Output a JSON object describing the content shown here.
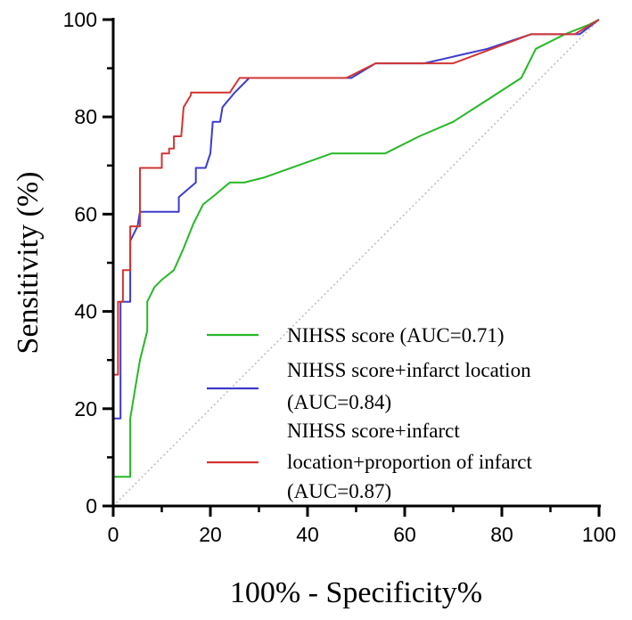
{
  "chart_data": {
    "type": "line",
    "title": "",
    "xlabel": "100% - Specificity%",
    "ylabel": "Sensitivity (%)",
    "xlim": [
      0,
      100
    ],
    "ylim": [
      0,
      100
    ],
    "xticks": [
      "0",
      "20",
      "40",
      "60",
      "80",
      "100"
    ],
    "yticks": [
      "0",
      "20",
      "40",
      "60",
      "80",
      "100"
    ],
    "grid": false,
    "legend_position": "bottom-right",
    "reference_line": {
      "x": [
        0,
        100
      ],
      "y": [
        0,
        100
      ],
      "style": "dotted",
      "color": "#bbbbbb"
    },
    "series": [
      {
        "name": "NIHSS score (AUC=0.71)",
        "color": "#27b827",
        "x": [
          0,
          0,
          3.5,
          3.5,
          4.5,
          5.5,
          7,
          7,
          8.5,
          10,
          12.5,
          14.5,
          16.5,
          18.5,
          21,
          24,
          27,
          31,
          38,
          45,
          56,
          63,
          70,
          77,
          84,
          87,
          93,
          98,
          100
        ],
        "y": [
          0,
          6,
          6,
          18,
          24,
          30,
          36,
          42,
          45,
          46.5,
          48.5,
          53,
          58,
          62,
          64,
          66.5,
          66.5,
          67.5,
          70,
          72.5,
          72.5,
          76,
          79,
          83.5,
          88,
          94,
          97,
          99,
          100
        ]
      },
      {
        "name": "NIHSS score+infarct location (AUC=0.84)",
        "color": "#3c3ccf",
        "x": [
          0,
          0,
          1.5,
          1.5,
          3.5,
          3.5,
          5,
          5.5,
          13.5,
          13.5,
          17,
          17,
          19,
          20,
          20.5,
          22,
          22.5,
          25,
          28,
          35,
          45,
          49,
          54,
          64,
          77,
          86,
          96,
          100
        ],
        "y": [
          0,
          18,
          18,
          42,
          42,
          54.5,
          57.5,
          60.5,
          60.5,
          63.5,
          66.5,
          69.5,
          69.5,
          72.5,
          79,
          79,
          82,
          85,
          88,
          88,
          88,
          88,
          91,
          91,
          94,
          97,
          97,
          100
        ]
      },
      {
        "name": "NIHSS score+infarct location+proportion of infarct (AUC=0.87)",
        "color": "#d23535",
        "x": [
          0,
          0,
          1,
          1,
          2,
          2,
          3.5,
          3.5,
          5.5,
          5.5,
          10,
          10,
          11.5,
          11.5,
          12.5,
          12.5,
          14,
          14.5,
          16,
          16,
          22,
          24,
          26,
          28,
          35,
          48,
          54,
          70,
          86,
          95,
          100
        ],
        "y": [
          0,
          27,
          27,
          42,
          42,
          48.5,
          48.5,
          57.5,
          57.5,
          69.5,
          69.5,
          72.5,
          72.5,
          73.5,
          73.5,
          76,
          76,
          82,
          84.5,
          85,
          85,
          85,
          88,
          88,
          88,
          88,
          91,
          91,
          97,
          97,
          100
        ]
      }
    ],
    "legend": [
      {
        "lines": [
          "NIHSS score (AUC=0.71)"
        ]
      },
      {
        "lines": [
          "NIHSS score+infarct location",
          "(AUC=0.84)"
        ]
      },
      {
        "lines": [
          "NIHSS score+infarct",
          "location+proportion of infarct",
          "(AUC=0.87)"
        ]
      }
    ]
  }
}
